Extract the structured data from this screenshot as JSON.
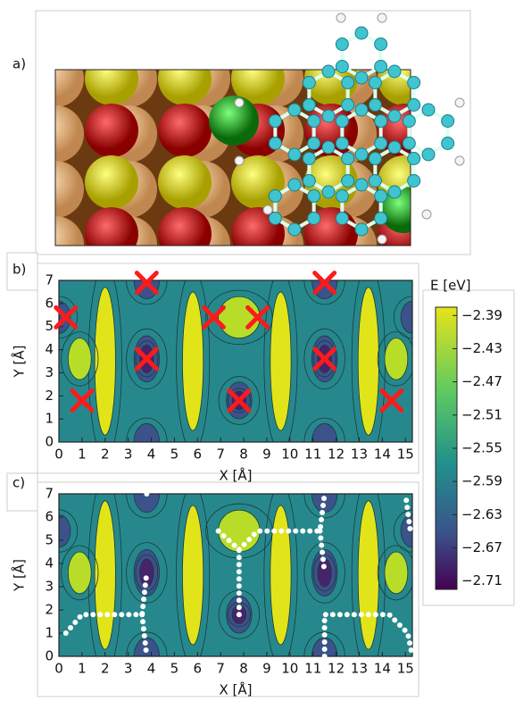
{
  "panel_a_label": "a)",
  "chart_data": [
    {
      "type": "scatter",
      "panel_label": "b)",
      "x_label": "X [Å]",
      "y_label": "Y [Å]",
      "xlim": [
        0,
        15.3
      ],
      "ylim": [
        0,
        7
      ],
      "xticks": [
        0,
        1,
        2,
        3,
        4,
        5,
        6,
        7,
        8,
        9,
        10,
        11,
        12,
        13,
        14,
        15
      ],
      "yticks": [
        0,
        1,
        2,
        3,
        4,
        5,
        6,
        7
      ],
      "series": [
        {
          "color": "#ff1a1a",
          "x": [
            1.0,
            3.8,
            3.8,
            0.3,
            6.7,
            8.6,
            7.8,
            11.5,
            11.5,
            14.4
          ],
          "y": [
            1.8,
            3.6,
            6.9,
            5.4,
            5.4,
            5.4,
            1.8,
            3.6,
            6.9,
            1.8
          ]
        }
      ]
    },
    {
      "type": "line",
      "panel_label": "c)",
      "x_label": "X [Å]",
      "y_label": "Y [Å]",
      "xlim": [
        0,
        15.3
      ],
      "ylim": [
        0,
        7
      ],
      "xticks": [
        0,
        1,
        2,
        3,
        4,
        5,
        6,
        7,
        8,
        9,
        10,
        11,
        12,
        13,
        14,
        15
      ],
      "yticks": [
        0,
        1,
        2,
        3,
        4,
        5,
        6,
        7
      ],
      "series": [
        {
          "color": "#ffffff",
          "x": [
            0.3,
            1.0,
            3.6,
            3.8,
            null,
            3.6,
            3.8,
            null,
            3.8,
            null,
            7.8,
            7.8,
            6.9,
            null,
            7.8,
            8.6,
            11.3,
            11.5,
            null,
            11.3,
            11.5,
            null,
            11.5,
            11.5,
            14.3,
            15.1,
            15.3,
            null,
            15.2,
            15.0
          ],
          "y": [
            1.0,
            1.8,
            1.8,
            3.6,
            null,
            1.8,
            0,
            null,
            7.0,
            null,
            1.8,
            4.6,
            5.4,
            null,
            4.6,
            5.4,
            5.4,
            7.0,
            null,
            5.4,
            3.6,
            null,
            0,
            1.8,
            1.8,
            1.0,
            0,
            null,
            5.5,
            7.0
          ]
        }
      ]
    },
    {
      "type": "colorbar",
      "title": "E [eV]",
      "clim": [
        -2.72,
        -2.38
      ],
      "ticks": [
        {
          "value": -2.39,
          "label": "−2.39"
        },
        {
          "value": -2.43,
          "label": "−2.43"
        },
        {
          "value": -2.47,
          "label": "−2.47"
        },
        {
          "value": -2.51,
          "label": "−2.51"
        },
        {
          "value": -2.55,
          "label": "−2.55"
        },
        {
          "value": -2.59,
          "label": "−2.59"
        },
        {
          "value": -2.63,
          "label": "−2.63"
        },
        {
          "value": -2.67,
          "label": "−2.67"
        },
        {
          "value": -2.71,
          "label": "−2.71"
        }
      ]
    }
  ]
}
